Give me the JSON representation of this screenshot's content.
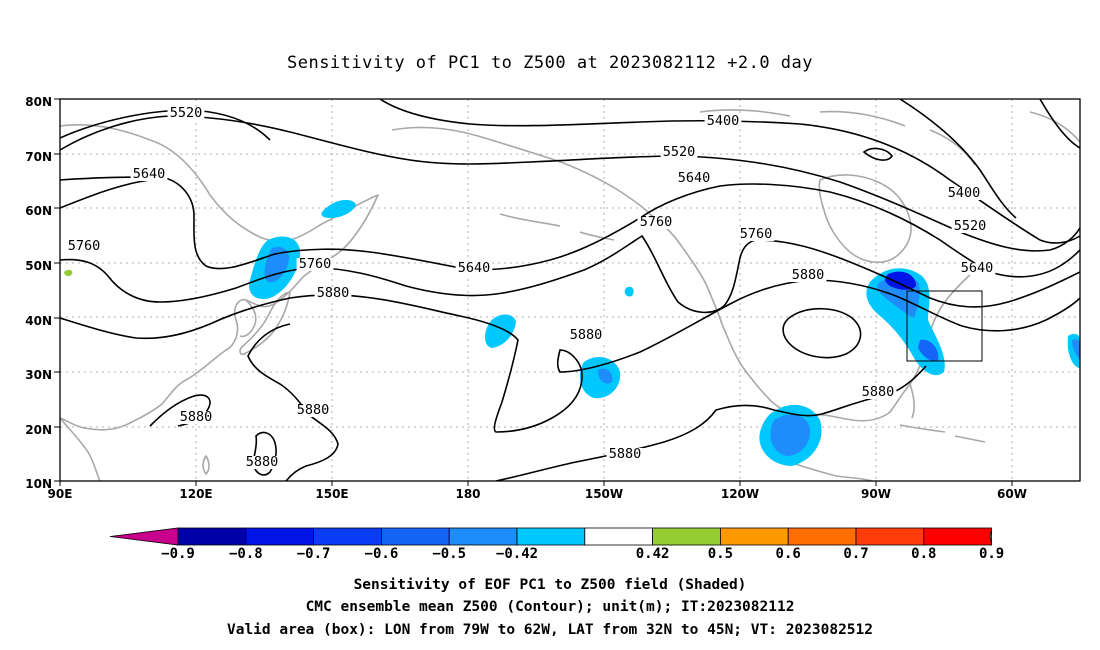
{
  "title": "Sensitivity of PC1 to Z500 at 2023082112 +2.0 day",
  "axes": {
    "y_ticks": [
      "80N",
      "70N",
      "60N",
      "50N",
      "40N",
      "30N",
      "20N",
      "10N"
    ],
    "x_ticks": [
      "90E",
      "120E",
      "150E",
      "180",
      "150W",
      "120W",
      "90W",
      "60W"
    ]
  },
  "contour_labels": [
    "5520",
    "5640",
    "5760",
    "5760",
    "5880",
    "5400",
    "5520",
    "5640",
    "5760",
    "5640",
    "5760",
    "5880",
    "5400",
    "5520",
    "5640",
    "5880",
    "5880",
    "5880",
    "5880",
    "5880",
    "5880"
  ],
  "colorbar": {
    "labels": [
      "−0.9",
      "−0.8",
      "−0.7",
      "−0.6",
      "−0.5",
      "−0.42",
      "0.42",
      "0.5",
      "0.6",
      "0.7",
      "0.8",
      "0.9"
    ],
    "colors": [
      "#0000a8",
      "#0014e6",
      "#0a3cf5",
      "#1464f5",
      "#1e8cfa",
      "#00c8ff",
      "#ffffff",
      "#96cd32",
      "#ff9900",
      "#ff6e00",
      "#ff3c0a",
      "#ff0000"
    ],
    "low_end_color": "#c8008c",
    "high_end_color": "#f59ac8"
  },
  "caption": {
    "line1": "Sensitivity of EOF PC1 to Z500 field (Shaded)",
    "line2": "CMC ensemble mean Z500 (Contour); unit(m); IT:2023082112",
    "line3": "Valid area (box): LON from 79W to 62W, LAT from 32N to 45N; VT: 2023082512"
  },
  "valid_box": {
    "lon_w": -79,
    "lon_e": -62,
    "lat_s": 32,
    "lat_n": 45
  }
}
